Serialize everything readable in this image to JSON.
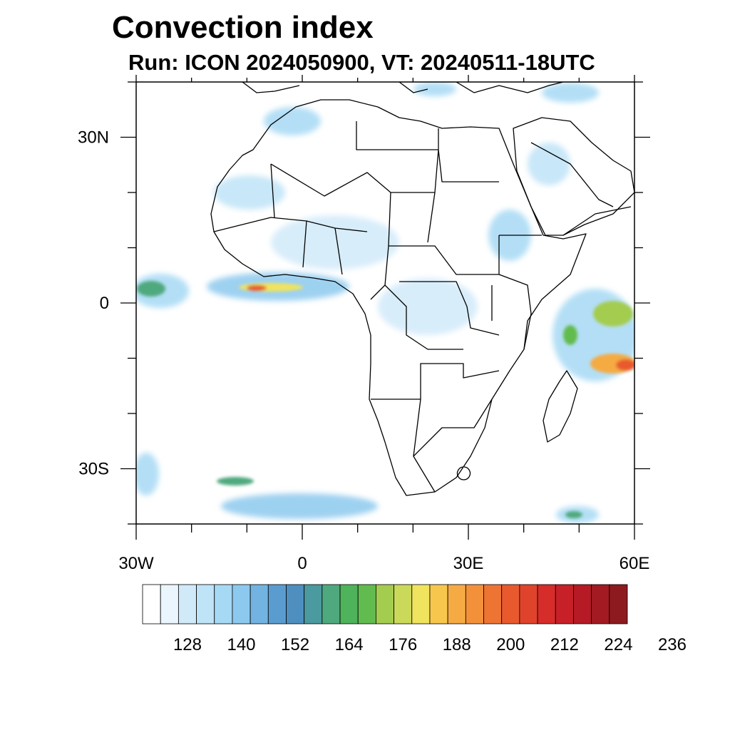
{
  "title": "Convection index",
  "subtitle": "Run: ICON 2024050900,  VT: 20240511-18UTC",
  "map": {
    "lon_range": [
      -30,
      60
    ],
    "lat_range": [
      -40,
      40
    ],
    "lon_ticks": [
      {
        "value": -30,
        "label": "30W"
      },
      {
        "value": 0,
        "label": "0"
      },
      {
        "value": 30,
        "label": "30E"
      },
      {
        "value": 60,
        "label": "60E"
      }
    ],
    "lat_ticks": [
      {
        "value": 30,
        "label": "30N"
      },
      {
        "value": 0,
        "label": "0"
      },
      {
        "value": -30,
        "label": "30S"
      }
    ],
    "field": "convection index",
    "regions_of_high_values": [
      "equatorial Atlantic / Gulf of Guinea",
      "western Indian Ocean east of Madagascar",
      "eastern Atlantic near 0 at 30W",
      "southern Atlantic storm track near 35S"
    ]
  },
  "colorbar": {
    "tick_labels": [
      "128",
      "140",
      "152",
      "164",
      "176",
      "188",
      "200",
      "212",
      "224",
      "236"
    ],
    "colors": [
      "#ffffff",
      "#eaf5fd",
      "#d1eaf9",
      "#bfe3f7",
      "#a6d9f4",
      "#8dc9ee",
      "#73b3e2",
      "#5a9ccf",
      "#4e8fc0",
      "#4a9aa0",
      "#4fa97e",
      "#4eb35b",
      "#62bb4e",
      "#a4cc4f",
      "#cbd95a",
      "#f0e35e",
      "#f7c64d",
      "#f5aa43",
      "#f3913b",
      "#ee7434",
      "#e85a2e",
      "#e0432b",
      "#d62c2a",
      "#c72028",
      "#b61a25",
      "#a31a22",
      "#8c1a1e"
    ]
  }
}
